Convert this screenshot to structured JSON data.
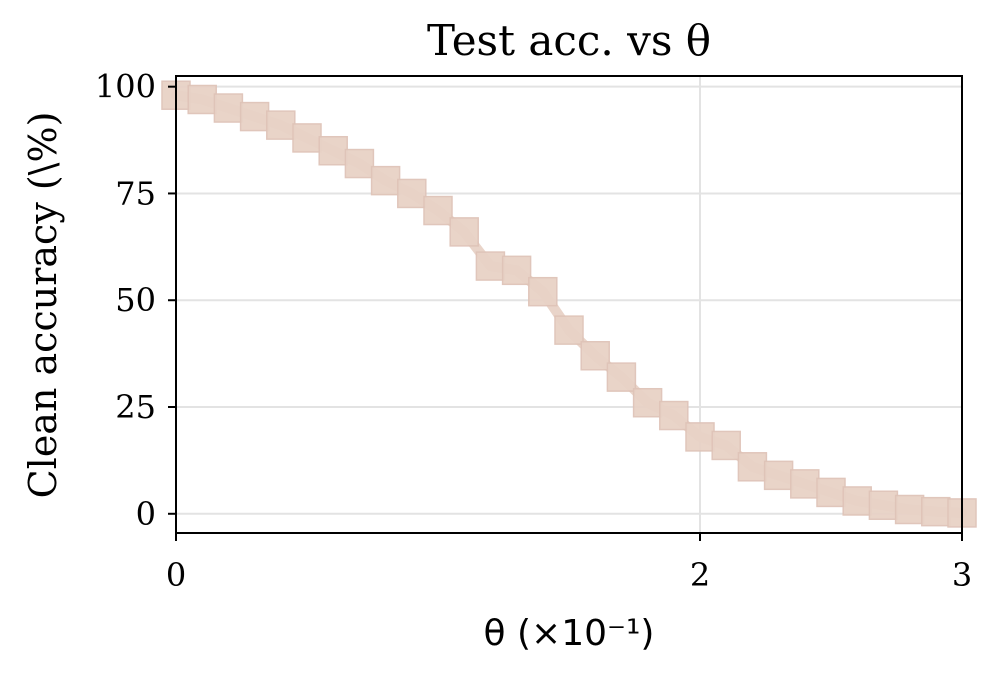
{
  "chart_data": {
    "type": "line",
    "title": "Test acc. vs θ",
    "xlabel": "θ (×10⁻¹)",
    "ylabel": "Clean accuracy (\\%)",
    "x_ticks": [
      {
        "value": 0,
        "label": "0"
      },
      {
        "value": 2,
        "label": "2"
      },
      {
        "value": 3,
        "label": "3"
      }
    ],
    "y_ticks": [
      {
        "value": 0,
        "label": "0"
      },
      {
        "value": 25,
        "label": "25"
      },
      {
        "value": 50,
        "label": "50"
      },
      {
        "value": 75,
        "label": "75"
      },
      {
        "value": 100,
        "label": "100"
      }
    ],
    "xlim": [
      0,
      3
    ],
    "ylim": [
      -4.5,
      102.5
    ],
    "grid": true,
    "legend": "none",
    "marker": "square",
    "color": "#e8d2c6",
    "series": [
      {
        "x": [
          0.0,
          0.1,
          0.2,
          0.3,
          0.4,
          0.5,
          0.6,
          0.7,
          0.8,
          0.9,
          1.0,
          1.1,
          1.2,
          1.3,
          1.4,
          1.5,
          1.6,
          1.7,
          1.8,
          1.9,
          2.0,
          2.1,
          2.2,
          2.3,
          2.4,
          2.5,
          2.6,
          2.7,
          2.8,
          2.9,
          3.0
        ],
        "y": [
          98,
          97,
          95,
          93,
          91,
          88,
          85,
          82,
          78,
          75,
          71,
          66,
          58,
          57,
          52,
          43,
          37,
          32,
          26,
          23,
          18,
          16,
          11,
          9,
          7,
          5,
          3,
          2,
          1,
          0.5,
          0.2
        ]
      }
    ]
  }
}
